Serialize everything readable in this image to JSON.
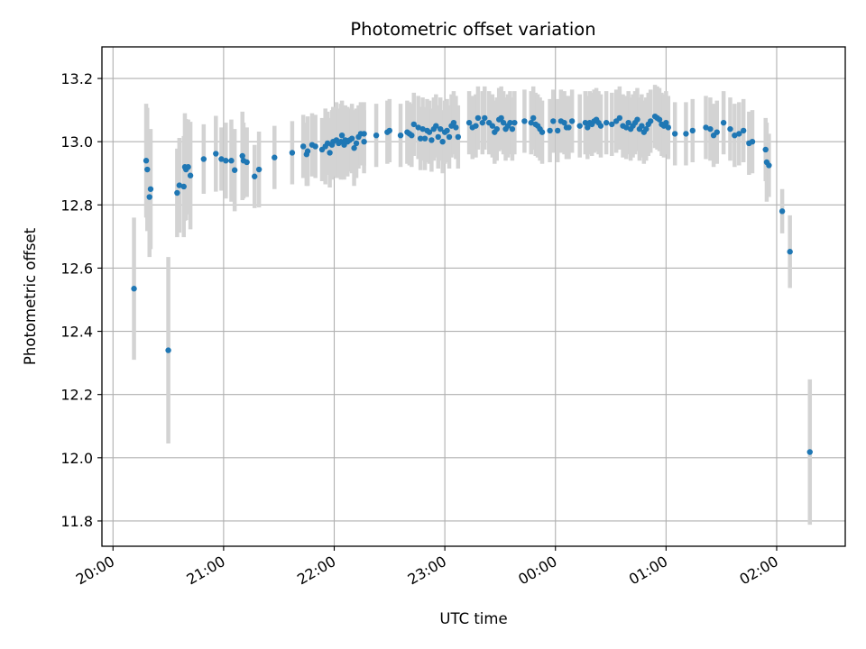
{
  "chart_data": {
    "type": "scatter",
    "title": "Photometric offset variation",
    "xlabel": "UTC time",
    "ylabel": "Photometric offset",
    "x_unit": "hours UTC",
    "xlim": [
      19.9,
      26.62
    ],
    "ylim": [
      11.72,
      13.3
    ],
    "x_ticks": [
      {
        "value": 20,
        "label": "20:00"
      },
      {
        "value": 21,
        "label": "21:00"
      },
      {
        "value": 22,
        "label": "22:00"
      },
      {
        "value": 23,
        "label": "23:00"
      },
      {
        "value": 24,
        "label": "00:00"
      },
      {
        "value": 25,
        "label": "01:00"
      },
      {
        "value": 26,
        "label": "02:00"
      }
    ],
    "y_ticks": [
      {
        "value": 11.8,
        "label": "11.8"
      },
      {
        "value": 12.0,
        "label": "12.0"
      },
      {
        "value": 12.2,
        "label": "12.2"
      },
      {
        "value": 12.4,
        "label": "12.4"
      },
      {
        "value": 12.6,
        "label": "12.6"
      },
      {
        "value": 12.8,
        "label": "12.8"
      },
      {
        "value": 13.0,
        "label": "13.0"
      },
      {
        "value": 13.2,
        "label": "13.2"
      }
    ],
    "grid": true,
    "marker_color": "#1f77b4",
    "errorbar_color": "#d3d3d3",
    "points_format": [
      "utc_hour",
      "offset",
      "uncertainty"
    ],
    "points": [
      [
        20.19,
        12.535,
        0.225
      ],
      [
        20.3,
        12.94,
        0.18
      ],
      [
        20.31,
        12.912,
        0.195
      ],
      [
        20.33,
        12.825,
        0.19
      ],
      [
        20.34,
        12.85,
        0.19
      ],
      [
        20.5,
        12.34,
        0.295
      ],
      [
        20.58,
        12.838,
        0.14
      ],
      [
        20.6,
        12.862,
        0.15
      ],
      [
        20.64,
        12.858,
        0.16
      ],
      [
        20.65,
        12.92,
        0.17
      ],
      [
        20.66,
        12.912,
        0.16
      ],
      [
        20.68,
        12.92,
        0.15
      ],
      [
        20.7,
        12.893,
        0.17
      ],
      [
        20.82,
        12.945,
        0.11
      ],
      [
        20.93,
        12.962,
        0.12
      ],
      [
        20.98,
        12.945,
        0.1
      ],
      [
        21.02,
        12.94,
        0.12
      ],
      [
        21.07,
        12.94,
        0.13
      ],
      [
        21.1,
        12.91,
        0.13
      ],
      [
        21.17,
        12.955,
        0.14
      ],
      [
        21.18,
        12.94,
        0.12
      ],
      [
        21.21,
        12.935,
        0.11
      ],
      [
        21.28,
        12.89,
        0.1
      ],
      [
        21.32,
        12.912,
        0.12
      ],
      [
        21.46,
        12.95,
        0.1
      ],
      [
        21.62,
        12.965,
        0.1
      ],
      [
        21.72,
        12.985,
        0.1
      ],
      [
        21.75,
        12.96,
        0.1
      ],
      [
        21.76,
        12.97,
        0.11
      ],
      [
        21.8,
        12.99,
        0.1
      ],
      [
        21.83,
        12.985,
        0.1
      ],
      [
        21.89,
        12.975,
        0.1
      ],
      [
        21.92,
        12.985,
        0.12
      ],
      [
        21.94,
        12.995,
        0.1
      ],
      [
        21.96,
        12.965,
        0.11
      ],
      [
        21.98,
        12.99,
        0.11
      ],
      [
        21.99,
        13.0,
        0.11
      ],
      [
        22.02,
        13.005,
        0.12
      ],
      [
        22.04,
        12.995,
        0.11
      ],
      [
        22.06,
        13.0,
        0.12
      ],
      [
        22.07,
        13.02,
        0.11
      ],
      [
        22.09,
        12.99,
        0.11
      ],
      [
        22.1,
        13.005,
        0.11
      ],
      [
        22.12,
        13.0,
        0.11
      ],
      [
        22.14,
        13.005,
        0.1
      ],
      [
        22.16,
        13.01,
        0.11
      ],
      [
        22.18,
        12.98,
        0.12
      ],
      [
        22.2,
        12.995,
        0.11
      ],
      [
        22.22,
        13.015,
        0.1
      ],
      [
        22.24,
        13.025,
        0.1
      ],
      [
        22.27,
        13.0,
        0.1
      ],
      [
        22.27,
        13.025,
        0.1
      ],
      [
        22.38,
        13.02,
        0.1
      ],
      [
        22.48,
        13.03,
        0.1
      ],
      [
        22.5,
        13.035,
        0.1
      ],
      [
        22.6,
        13.02,
        0.1
      ],
      [
        22.66,
        13.03,
        0.1
      ],
      [
        22.68,
        13.025,
        0.1
      ],
      [
        22.7,
        13.02,
        0.1
      ],
      [
        22.72,
        13.055,
        0.1
      ],
      [
        22.76,
        13.045,
        0.1
      ],
      [
        22.78,
        13.01,
        0.1
      ],
      [
        22.8,
        13.04,
        0.1
      ],
      [
        22.82,
        13.01,
        0.1
      ],
      [
        22.84,
        13.035,
        0.1
      ],
      [
        22.86,
        13.03,
        0.1
      ],
      [
        22.88,
        13.005,
        0.1
      ],
      [
        22.9,
        13.04,
        0.1
      ],
      [
        22.92,
        13.05,
        0.1
      ],
      [
        22.94,
        13.015,
        0.1
      ],
      [
        22.96,
        13.04,
        0.1
      ],
      [
        22.98,
        13.0,
        0.1
      ],
      [
        23.0,
        13.03,
        0.1
      ],
      [
        23.02,
        13.035,
        0.1
      ],
      [
        23.04,
        13.015,
        0.1
      ],
      [
        23.06,
        13.05,
        0.1
      ],
      [
        23.08,
        13.06,
        0.1
      ],
      [
        23.1,
        13.045,
        0.1
      ],
      [
        23.12,
        13.015,
        0.1
      ],
      [
        23.22,
        13.06,
        0.1
      ],
      [
        23.25,
        13.045,
        0.1
      ],
      [
        23.28,
        13.05,
        0.1
      ],
      [
        23.3,
        13.075,
        0.1
      ],
      [
        23.34,
        13.06,
        0.1
      ],
      [
        23.36,
        13.075,
        0.1
      ],
      [
        23.4,
        13.06,
        0.1
      ],
      [
        23.43,
        13.05,
        0.1
      ],
      [
        23.45,
        13.03,
        0.1
      ],
      [
        23.47,
        13.04,
        0.1
      ],
      [
        23.49,
        13.07,
        0.1
      ],
      [
        23.51,
        13.075,
        0.1
      ],
      [
        23.53,
        13.06,
        0.1
      ],
      [
        23.55,
        13.04,
        0.1
      ],
      [
        23.57,
        13.05,
        0.1
      ],
      [
        23.59,
        13.06,
        0.1
      ],
      [
        23.61,
        13.04,
        0.1
      ],
      [
        23.63,
        13.06,
        0.1
      ],
      [
        23.72,
        13.065,
        0.1
      ],
      [
        23.78,
        13.06,
        0.1
      ],
      [
        23.8,
        13.075,
        0.1
      ],
      [
        23.82,
        13.055,
        0.1
      ],
      [
        23.84,
        13.05,
        0.1
      ],
      [
        23.86,
        13.04,
        0.1
      ],
      [
        23.88,
        13.03,
        0.1
      ],
      [
        23.95,
        13.035,
        0.1
      ],
      [
        23.98,
        13.065,
        0.1
      ],
      [
        24.02,
        13.035,
        0.1
      ],
      [
        24.05,
        13.065,
        0.1
      ],
      [
        24.08,
        13.06,
        0.1
      ],
      [
        24.1,
        13.045,
        0.1
      ],
      [
        24.12,
        13.045,
        0.1
      ],
      [
        24.15,
        13.065,
        0.1
      ],
      [
        24.22,
        13.05,
        0.1
      ],
      [
        24.27,
        13.06,
        0.1
      ],
      [
        24.29,
        13.045,
        0.1
      ],
      [
        24.31,
        13.06,
        0.1
      ],
      [
        24.33,
        13.055,
        0.1
      ],
      [
        24.35,
        13.065,
        0.1
      ],
      [
        24.37,
        13.07,
        0.1
      ],
      [
        24.39,
        13.06,
        0.1
      ],
      [
        24.41,
        13.05,
        0.1
      ],
      [
        24.46,
        13.06,
        0.1
      ],
      [
        24.51,
        13.055,
        0.1
      ],
      [
        24.55,
        13.065,
        0.1
      ],
      [
        24.58,
        13.075,
        0.1
      ],
      [
        24.61,
        13.05,
        0.1
      ],
      [
        24.64,
        13.045,
        0.1
      ],
      [
        24.66,
        13.06,
        0.1
      ],
      [
        24.68,
        13.04,
        0.1
      ],
      [
        24.7,
        13.05,
        0.1
      ],
      [
        24.72,
        13.06,
        0.1
      ],
      [
        24.74,
        13.07,
        0.1
      ],
      [
        24.76,
        13.04,
        0.1
      ],
      [
        24.78,
        13.05,
        0.1
      ],
      [
        24.8,
        13.03,
        0.1
      ],
      [
        24.82,
        13.04,
        0.1
      ],
      [
        24.84,
        13.055,
        0.1
      ],
      [
        24.86,
        13.065,
        0.1
      ],
      [
        24.9,
        13.08,
        0.1
      ],
      [
        24.92,
        13.075,
        0.1
      ],
      [
        24.94,
        13.07,
        0.1
      ],
      [
        24.96,
        13.055,
        0.1
      ],
      [
        24.98,
        13.05,
        0.1
      ],
      [
        25.0,
        13.06,
        0.1
      ],
      [
        25.02,
        13.045,
        0.1
      ],
      [
        25.08,
        13.025,
        0.1
      ],
      [
        25.18,
        13.025,
        0.1
      ],
      [
        25.24,
        13.035,
        0.1
      ],
      [
        25.36,
        13.045,
        0.1
      ],
      [
        25.4,
        13.04,
        0.1
      ],
      [
        25.43,
        13.02,
        0.1
      ],
      [
        25.46,
        13.03,
        0.1
      ],
      [
        25.52,
        13.06,
        0.1
      ],
      [
        25.58,
        13.04,
        0.1
      ],
      [
        25.62,
        13.02,
        0.1
      ],
      [
        25.66,
        13.025,
        0.1
      ],
      [
        25.7,
        13.035,
        0.1
      ],
      [
        25.75,
        12.995,
        0.1
      ],
      [
        25.78,
        13.0,
        0.1
      ],
      [
        25.9,
        12.975,
        0.1
      ],
      [
        25.91,
        12.935,
        0.125
      ],
      [
        25.93,
        12.925,
        0.1
      ],
      [
        26.05,
        12.78,
        0.07
      ],
      [
        26.12,
        12.652,
        0.115
      ],
      [
        26.3,
        12.018,
        0.23
      ]
    ]
  }
}
